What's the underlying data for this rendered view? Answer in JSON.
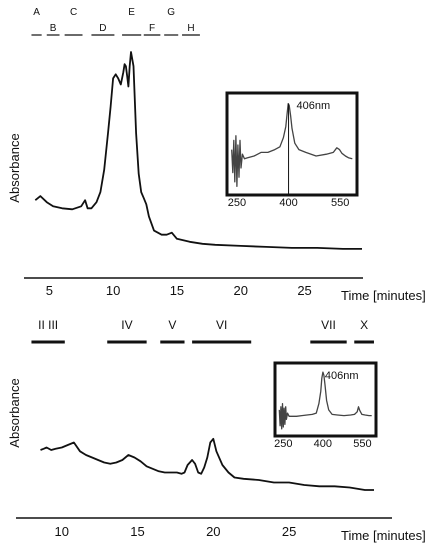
{
  "chart_data": [
    {
      "type": "line",
      "ylabel": "Absorbance",
      "xlabel": "Time [minutes]",
      "x_ticks": [
        5,
        10,
        15,
        20,
        25
      ],
      "xlim": [
        3.8,
        29.5
      ],
      "ylim": [
        0,
        1
      ],
      "grid": false,
      "fractions": [
        "A",
        "B",
        "C",
        "D",
        "E",
        "F",
        "G",
        "H"
      ],
      "fraction_ranges": [
        [
          3.6,
          4.4
        ],
        [
          4.8,
          5.8
        ],
        [
          6.2,
          7.6
        ],
        [
          8.3,
          10.1
        ],
        [
          10.7,
          12.2
        ],
        [
          12.4,
          13.7
        ],
        [
          14.0,
          15.1
        ],
        [
          15.4,
          16.8
        ]
      ],
      "series": [
        {
          "x": [
            3.9,
            4.3,
            4.8,
            5.3,
            6.0,
            6.8,
            7.5,
            7.8,
            8.0,
            8.3,
            8.7,
            9.0,
            9.3,
            9.6,
            9.8,
            10.0,
            10.2,
            10.4,
            10.6,
            10.8,
            10.9,
            11.0,
            11.1,
            11.2,
            11.3,
            11.4,
            11.6,
            11.8,
            12.0,
            12.2,
            12.4,
            12.6,
            12.8,
            13.2,
            13.8,
            14.2,
            14.6,
            15.0,
            16.0,
            17.0,
            18.0,
            20.0,
            22.0,
            24.0,
            26.0,
            28.0,
            29.5
          ],
          "values": [
            0.27,
            0.29,
            0.26,
            0.24,
            0.23,
            0.225,
            0.24,
            0.27,
            0.23,
            0.23,
            0.26,
            0.31,
            0.42,
            0.6,
            0.73,
            0.87,
            0.89,
            0.87,
            0.84,
            0.9,
            0.94,
            0.93,
            0.88,
            0.83,
            0.93,
            1.0,
            0.93,
            0.6,
            0.4,
            0.31,
            0.28,
            0.25,
            0.19,
            0.12,
            0.1,
            0.1,
            0.11,
            0.08,
            0.065,
            0.055,
            0.05,
            0.045,
            0.04,
            0.035,
            0.035,
            0.03,
            0.03
          ]
        }
      ],
      "inset": {
        "type": "line",
        "x_ticks": [
          250,
          400,
          550
        ],
        "xlim": [
          230,
          590
        ],
        "marker": {
          "x": 400,
          "label": "406nm"
        },
        "x": [
          235,
          238,
          241,
          244,
          247,
          250,
          253,
          256,
          259,
          262,
          266,
          272,
          280,
          300,
          320,
          340,
          360,
          375,
          385,
          392,
          396,
          399,
          402,
          406,
          410,
          418,
          430,
          450,
          480,
          510,
          530,
          540,
          548,
          555,
          565,
          575,
          585
        ],
        "values": [
          0.45,
          0.2,
          0.55,
          0.1,
          0.6,
          0.05,
          0.5,
          0.15,
          0.55,
          0.25,
          0.4,
          0.35,
          0.36,
          0.38,
          0.42,
          0.42,
          0.45,
          0.48,
          0.58,
          0.7,
          0.85,
          0.95,
          0.93,
          0.82,
          0.68,
          0.52,
          0.45,
          0.42,
          0.38,
          0.4,
          0.42,
          0.47,
          0.45,
          0.41,
          0.38,
          0.36,
          0.35
        ]
      }
    },
    {
      "type": "line",
      "ylabel": "Absorbance",
      "xlabel": "Time [minutes]",
      "x_ticks": [
        10,
        15,
        20,
        25
      ],
      "xlim": [
        8.3,
        30.8
      ],
      "ylim": [
        0,
        1
      ],
      "grid": false,
      "fractions": [
        "II III",
        "IV",
        "V",
        "VI",
        "VII",
        "X"
      ],
      "fraction_ranges": [
        [
          8.0,
          10.2
        ],
        [
          13.0,
          15.6
        ],
        [
          16.5,
          18.1
        ],
        [
          18.6,
          22.5
        ],
        [
          26.4,
          28.8
        ],
        [
          29.3,
          30.6
        ]
      ],
      "series": [
        {
          "x": [
            8.6,
            8.8,
            9.0,
            9.3,
            9.6,
            10.0,
            10.4,
            10.8,
            11.2,
            11.6,
            12.0,
            12.4,
            12.8,
            13.2,
            13.6,
            14.0,
            14.4,
            14.8,
            15.2,
            15.6,
            16.0,
            16.4,
            16.8,
            17.2,
            17.6,
            17.9,
            18.1,
            18.3,
            18.6,
            18.8,
            19.0,
            19.2,
            19.4,
            19.6,
            19.8,
            20.0,
            20.2,
            20.6,
            21.0,
            21.4,
            22.0,
            23.0,
            24.0,
            25.0,
            26.0,
            27.0,
            28.0,
            29.0,
            30.0,
            30.6
          ],
          "values": [
            0.56,
            0.57,
            0.58,
            0.56,
            0.57,
            0.58,
            0.6,
            0.62,
            0.55,
            0.52,
            0.5,
            0.48,
            0.46,
            0.45,
            0.46,
            0.48,
            0.52,
            0.5,
            0.47,
            0.43,
            0.41,
            0.39,
            0.38,
            0.38,
            0.38,
            0.37,
            0.38,
            0.44,
            0.48,
            0.45,
            0.38,
            0.37,
            0.42,
            0.5,
            0.62,
            0.65,
            0.55,
            0.44,
            0.38,
            0.34,
            0.33,
            0.32,
            0.3,
            0.3,
            0.28,
            0.27,
            0.27,
            0.26,
            0.24,
            0.24
          ]
        }
      ],
      "inset": {
        "type": "line",
        "x_ticks": [
          250,
          400,
          550
        ],
        "xlim": [
          230,
          590
        ],
        "marker": {
          "x": 400,
          "label": "406nm"
        },
        "x": [
          235,
          238,
          241,
          244,
          247,
          250,
          253,
          256,
          259,
          262,
          266,
          272,
          280,
          300,
          320,
          340,
          360,
          375,
          385,
          392,
          396,
          400,
          404,
          408,
          414,
          422,
          435,
          455,
          480,
          505,
          520,
          530,
          535,
          540,
          548,
          560,
          575,
          585
        ],
        "values": [
          0.35,
          0.1,
          0.4,
          0.05,
          0.45,
          0.08,
          0.38,
          0.12,
          0.4,
          0.2,
          0.3,
          0.25,
          0.25,
          0.25,
          0.26,
          0.27,
          0.28,
          0.3,
          0.45,
          0.65,
          0.85,
          0.95,
          0.9,
          0.75,
          0.5,
          0.35,
          0.28,
          0.27,
          0.26,
          0.27,
          0.28,
          0.32,
          0.4,
          0.34,
          0.28,
          0.27,
          0.26,
          0.26
        ]
      }
    }
  ]
}
